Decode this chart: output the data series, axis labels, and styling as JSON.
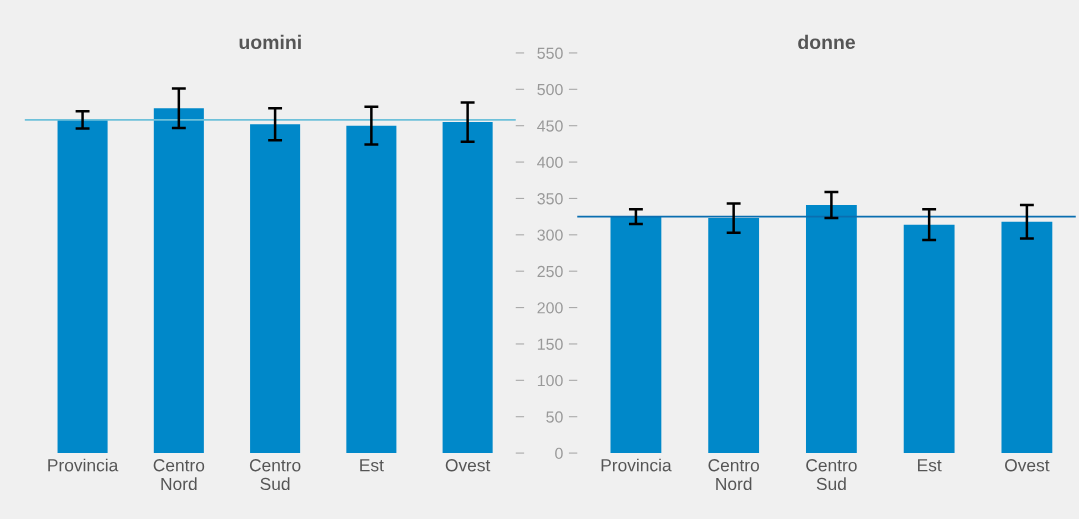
{
  "chart_data": [
    {
      "type": "bar",
      "title": "uomini",
      "categories": [
        "Provincia",
        "Centro\nNord",
        "Centro\nSud",
        "Est",
        "Ovest"
      ],
      "values": [
        458,
        474,
        452,
        450,
        455
      ],
      "errors": [
        12,
        27,
        22,
        26,
        27
      ],
      "color": "#0088c9",
      "ylim": [
        0,
        550
      ],
      "yticks": [
        0,
        50,
        100,
        150,
        200,
        250,
        300,
        350,
        400,
        450,
        500,
        550
      ],
      "tick_labels": "x",
      "grid": false,
      "ref_lines": [
        {
          "axis": "y",
          "value": 458,
          "color": "#6ec1da"
        }
      ]
    },
    {
      "type": "bar",
      "title": "donne",
      "categories": [
        "Provincia",
        "Centro\nNord",
        "Centro\nSud",
        "Est",
        "Ovest"
      ],
      "values": [
        325,
        323,
        341,
        314,
        318
      ],
      "errors": [
        10,
        20,
        18,
        21,
        23
      ],
      "color": "#0088c9",
      "ylim": [
        0,
        550
      ],
      "yticks": [
        0,
        50,
        100,
        150,
        200,
        250,
        300,
        350,
        400,
        450,
        500,
        550
      ],
      "grid": false,
      "ref_lines": [
        {
          "axis": "y",
          "value": 325,
          "color": "#0a6eb0"
        }
      ]
    }
  ]
}
